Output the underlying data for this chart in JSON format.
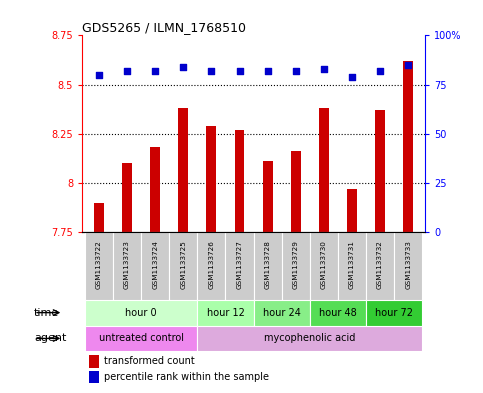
{
  "title": "GDS5265 / ILMN_1768510",
  "samples": [
    "GSM1133722",
    "GSM1133723",
    "GSM1133724",
    "GSM1133725",
    "GSM1133726",
    "GSM1133727",
    "GSM1133728",
    "GSM1133729",
    "GSM1133730",
    "GSM1133731",
    "GSM1133732",
    "GSM1133733"
  ],
  "bar_values": [
    7.9,
    8.1,
    8.18,
    8.38,
    8.29,
    8.27,
    8.11,
    8.16,
    8.38,
    7.97,
    8.37,
    8.62
  ],
  "dot_values": [
    80,
    82,
    82,
    84,
    82,
    82,
    82,
    82,
    83,
    79,
    82,
    85
  ],
  "bar_color": "#cc0000",
  "dot_color": "#0000cc",
  "ylim_left": [
    7.75,
    8.75
  ],
  "ylim_right": [
    0,
    100
  ],
  "yticks_left": [
    7.75,
    8.0,
    8.25,
    8.5,
    8.75
  ],
  "yticks_right": [
    0,
    25,
    50,
    75,
    100
  ],
  "ytick_labels_left": [
    "7.75",
    "8",
    "8.25",
    "8.5",
    "8.75"
  ],
  "ytick_labels_right": [
    "0",
    "25",
    "50",
    "75",
    "100%"
  ],
  "dotted_lines": [
    8.0,
    8.25,
    8.5
  ],
  "bar_baseline": 7.75,
  "time_groups": [
    {
      "label": "hour 0",
      "start": 0,
      "end": 4,
      "color": "#ccffcc"
    },
    {
      "label": "hour 12",
      "start": 4,
      "end": 6,
      "color": "#aaffaa"
    },
    {
      "label": "hour 24",
      "start": 6,
      "end": 8,
      "color": "#88ee88"
    },
    {
      "label": "hour 48",
      "start": 8,
      "end": 10,
      "color": "#55dd55"
    },
    {
      "label": "hour 72",
      "start": 10,
      "end": 12,
      "color": "#33cc33"
    }
  ],
  "agent_groups": [
    {
      "label": "untreated control",
      "start": 0,
      "end": 4,
      "color": "#ee88ee"
    },
    {
      "label": "mycophenolic acid",
      "start": 4,
      "end": 12,
      "color": "#ddaadd"
    }
  ],
  "sample_bg_color": "#cccccc",
  "sample_border_color": "#ffffff",
  "legend_items": [
    {
      "color": "#cc0000",
      "label": "transformed count"
    },
    {
      "color": "#0000cc",
      "label": "percentile rank within the sample"
    }
  ],
  "fig_width": 4.83,
  "fig_height": 3.93,
  "dpi": 100
}
